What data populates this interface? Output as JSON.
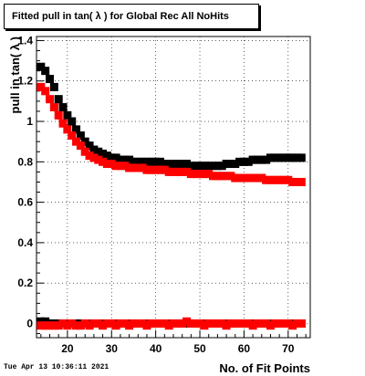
{
  "chart_data": {
    "type": "scatter",
    "title": "Fitted pull in tan( λ ) for Global Rec All NoHits",
    "xlabel": "No. of Fit Points",
    "ylabel": "pull in tan( λ )",
    "xlim": [
      13,
      75
    ],
    "ylim": [
      -0.07,
      1.42
    ],
    "xticks": [
      20,
      30,
      40,
      50,
      60,
      70
    ],
    "yticks": [
      0,
      0.2,
      0.4,
      0.6,
      0.8,
      1,
      1.2,
      1.4
    ],
    "ytick_labels": [
      "0",
      "0.2",
      "0.4",
      "0.6",
      "0.8",
      "1",
      "1.2",
      "1.4"
    ],
    "grid": true,
    "x": [
      14,
      15,
      16,
      17,
      18,
      19,
      20,
      21,
      22,
      23,
      24,
      25,
      26,
      27,
      28,
      29,
      30,
      31,
      32,
      33,
      34,
      35,
      36,
      37,
      38,
      39,
      40,
      41,
      42,
      43,
      44,
      45,
      46,
      47,
      48,
      49,
      50,
      51,
      52,
      53,
      54,
      55,
      56,
      57,
      58,
      59,
      60,
      61,
      62,
      63,
      64,
      65,
      66,
      67,
      68,
      69,
      70,
      71,
      72,
      73
    ],
    "series": [
      {
        "color": "#000000",
        "marker": "square",
        "values": [
          1.27,
          1.25,
          1.21,
          1.17,
          1.11,
          1.07,
          1.03,
          1.0,
          0.96,
          0.93,
          0.9,
          0.88,
          0.86,
          0.85,
          0.84,
          0.83,
          0.82,
          0.82,
          0.81,
          0.81,
          0.81,
          0.8,
          0.8,
          0.8,
          0.8,
          0.8,
          0.8,
          0.8,
          0.79,
          0.79,
          0.79,
          0.79,
          0.79,
          0.79,
          0.78,
          0.78,
          0.78,
          0.78,
          0.78,
          0.78,
          0.78,
          0.78,
          0.79,
          0.79,
          0.79,
          0.8,
          0.8,
          0.8,
          0.81,
          0.81,
          0.81,
          0.81,
          0.82,
          0.82,
          0.82,
          0.82,
          0.82,
          0.82,
          0.82,
          0.82
        ]
      },
      {
        "color": "#ff0000",
        "marker": "square",
        "values": [
          1.17,
          1.15,
          1.11,
          1.07,
          1.03,
          0.99,
          0.96,
          0.93,
          0.9,
          0.88,
          0.85,
          0.83,
          0.82,
          0.81,
          0.8,
          0.79,
          0.79,
          0.78,
          0.78,
          0.78,
          0.77,
          0.77,
          0.77,
          0.77,
          0.76,
          0.76,
          0.76,
          0.76,
          0.76,
          0.75,
          0.75,
          0.75,
          0.75,
          0.75,
          0.74,
          0.74,
          0.74,
          0.74,
          0.74,
          0.73,
          0.73,
          0.73,
          0.73,
          0.73,
          0.72,
          0.72,
          0.72,
          0.72,
          0.72,
          0.72,
          0.72,
          0.71,
          0.71,
          0.71,
          0.71,
          0.71,
          0.71,
          0.7,
          0.7,
          0.7
        ]
      },
      {
        "color": "#000000",
        "marker": "square",
        "values": [
          0.01,
          0.01,
          0.0,
          0.0,
          0.0,
          0.0,
          0.0,
          0.0,
          0.0,
          0.0,
          0.0,
          0.0,
          0.0,
          0.0,
          0.0,
          0.0,
          0.0,
          0.0,
          0.0,
          0.0,
          0.0,
          0.0,
          0.0,
          0.0,
          0.0,
          0.0,
          0.0,
          0.0,
          0.0,
          0.0,
          0.0,
          0.0,
          0.0,
          0.0,
          0.0,
          0.0,
          0.0,
          0.0,
          0.0,
          0.0,
          0.0,
          0.0,
          0.0,
          0.0,
          0.0,
          0.0,
          0.0,
          0.0,
          0.0,
          0.0,
          0.0,
          0.0,
          0.0,
          0.0,
          0.0,
          0.0,
          0.0,
          0.0,
          0.0,
          0.0
        ]
      },
      {
        "color": "#ff0000",
        "marker": "square",
        "values": [
          -0.01,
          -0.01,
          -0.01,
          -0.01,
          -0.01,
          0.0,
          -0.01,
          0.0,
          -0.01,
          -0.01,
          0.0,
          -0.01,
          0.0,
          0.0,
          -0.01,
          0.0,
          0.0,
          -0.01,
          0.0,
          0.0,
          -0.01,
          0.0,
          0.0,
          0.0,
          -0.01,
          0.0,
          0.0,
          0.0,
          0.0,
          -0.01,
          0.0,
          0.0,
          0.0,
          0.01,
          0.0,
          0.0,
          0.0,
          -0.01,
          0.0,
          0.0,
          0.0,
          0.0,
          -0.01,
          0.0,
          0.0,
          0.0,
          0.0,
          0.0,
          -0.01,
          0.0,
          0.0,
          0.0,
          -0.01,
          0.0,
          0.0,
          0.0,
          0.0,
          -0.01,
          0.0,
          0.0
        ]
      }
    ]
  },
  "datestamp": "Tue Apr 13 10:36:11 2021"
}
